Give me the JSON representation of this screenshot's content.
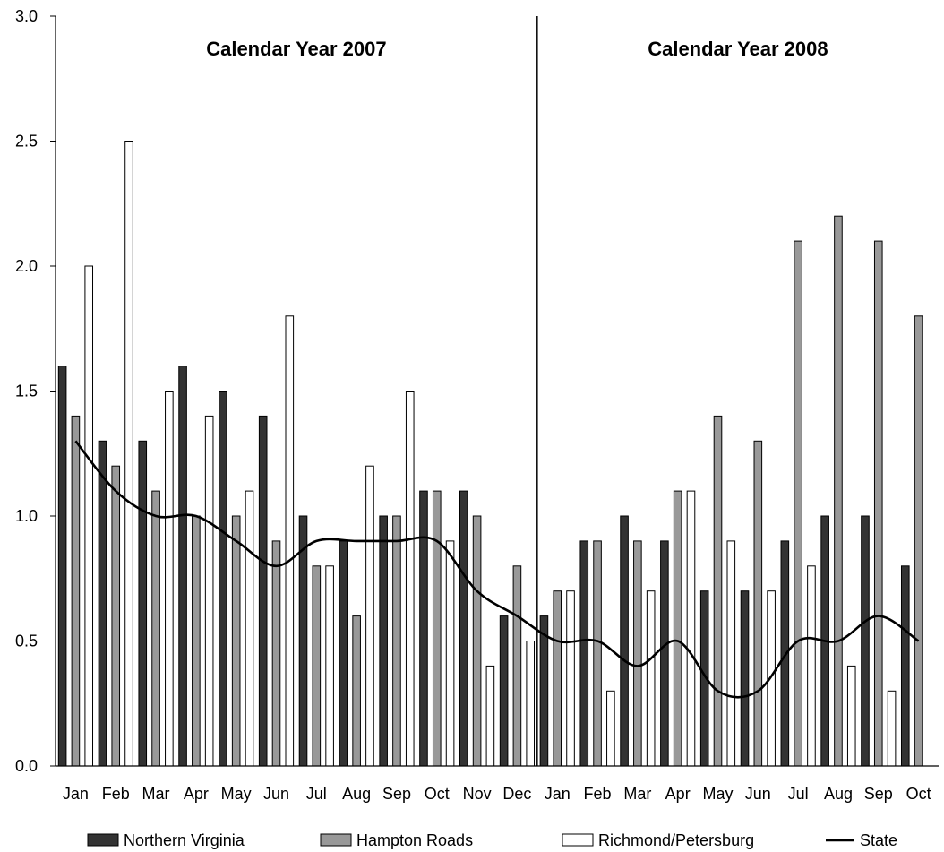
{
  "chart_data": {
    "type": "bar",
    "title": "",
    "xlabel": "",
    "ylabel": "",
    "ylim": [
      0,
      3.0
    ],
    "yticks": [
      "0.0",
      "0.5",
      "1.0",
      "1.5",
      "2.0",
      "2.5",
      "3.0"
    ],
    "grid": false,
    "legend_position": "bottom",
    "periods": [
      {
        "label": "Calendar Year 2007",
        "months": 12
      },
      {
        "label": "Calendar Year 2008",
        "months": 10
      }
    ],
    "categories": [
      "Jan",
      "Feb",
      "Mar",
      "Apr",
      "May",
      "Jun",
      "Jul",
      "Aug",
      "Sep",
      "Oct",
      "Nov",
      "Dec",
      "Jan",
      "Feb",
      "Mar",
      "Apr",
      "May",
      "Jun",
      "Jul",
      "Aug",
      "Sep",
      "Oct"
    ],
    "series": [
      {
        "name": "Northern Virginia",
        "kind": "bar",
        "color": "#333333",
        "values": [
          1.6,
          1.3,
          1.3,
          1.6,
          1.5,
          1.4,
          1.0,
          0.9,
          1.0,
          1.1,
          1.1,
          0.6,
          0.6,
          0.9,
          1.0,
          0.9,
          0.7,
          0.7,
          0.9,
          1.0,
          1.0,
          0.8
        ]
      },
      {
        "name": "Hampton Roads",
        "kind": "bar",
        "color": "#999999",
        "values": [
          1.4,
          1.2,
          1.1,
          1.0,
          1.0,
          0.9,
          0.8,
          0.6,
          1.0,
          1.1,
          1.0,
          0.8,
          0.7,
          0.9,
          0.9,
          1.1,
          1.4,
          1.3,
          2.1,
          2.2,
          2.1,
          1.8
        ]
      },
      {
        "name": "Richmond/Petersburg",
        "kind": "bar",
        "color": "#ffffff",
        "values": [
          2.0,
          2.5,
          1.5,
          1.4,
          1.1,
          1.8,
          0.8,
          1.2,
          1.5,
          0.9,
          0.4,
          0.5,
          0.7,
          0.3,
          0.7,
          1.1,
          0.9,
          0.7,
          0.8,
          0.4,
          0.3,
          null
        ]
      },
      {
        "name": "State",
        "kind": "line",
        "color": "#000000",
        "values": [
          1.3,
          1.1,
          1.0,
          1.0,
          0.9,
          0.8,
          0.9,
          0.9,
          0.9,
          0.9,
          0.7,
          0.6,
          0.5,
          0.5,
          0.4,
          0.5,
          0.3,
          0.3,
          0.5,
          0.5,
          0.6,
          0.5
        ]
      }
    ]
  }
}
